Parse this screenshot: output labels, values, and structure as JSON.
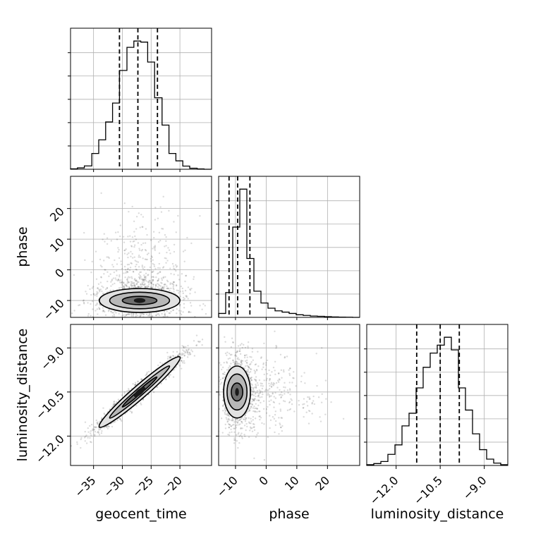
{
  "chart_data": {
    "type": "corner",
    "parameters": [
      "geocent_time",
      "phase",
      "luminosity_distance"
    ],
    "labels": {
      "geocent_time": "geocent_time",
      "phase": "phase",
      "luminosity_distance": "luminosity_distance"
    },
    "ranges": {
      "geocent_time": [
        -39.0,
        -14.5
      ],
      "phase": [
        -15.5,
        30.5
      ],
      "luminosity_distance": [
        -13.0,
        -8.2
      ]
    },
    "ticks": {
      "geocent_time": [
        -35,
        -30,
        -25,
        -20
      ],
      "phase": [
        -10,
        0,
        10,
        20
      ],
      "luminosity_distance": [
        -12.0,
        -10.5,
        -9.0
      ]
    },
    "tick_labels": {
      "geocent_time": [
        "−35",
        "−30",
        "−25",
        "−20"
      ],
      "phase": [
        "−10",
        "0",
        "10",
        "20"
      ],
      "luminosity_distance": [
        "−12.0",
        "−10.5",
        "−9.0"
      ]
    },
    "quantiles": {
      "geocent_time": [
        -30.5,
        -27.3,
        -23.9
      ],
      "phase": [
        -12.1,
        -9.3,
        -5.3
      ],
      "luminosity_distance": [
        -11.3,
        -10.5,
        -9.85
      ]
    },
    "histograms": {
      "geocent_time": {
        "edges": [
          -39.0,
          -37.8,
          -36.6,
          -35.3,
          -34.1,
          -32.9,
          -31.7,
          -30.5,
          -29.2,
          -28.0,
          -26.8,
          -25.6,
          -24.4,
          -23.1,
          -21.9,
          -20.7,
          -19.5,
          -18.3,
          -17.0,
          -15.8,
          -14.6
        ],
        "counts": [
          0.4,
          1.3,
          3.2,
          15,
          28,
          45,
          63,
          94,
          116,
          122,
          121,
          102,
          68,
          42,
          15,
          8,
          3,
          1,
          0.3,
          0
        ]
      },
      "phase": {
        "edges": [
          -15.5,
          -13.2,
          -10.9,
          -8.6,
          -6.3,
          -4.0,
          -1.7,
          0.6,
          2.9,
          5.2,
          7.5,
          9.8,
          12.1,
          14.4,
          16.7,
          19.0,
          21.3,
          23.6,
          25.9,
          28.2,
          30.5
        ],
        "counts": [
          3,
          19,
          69,
          98,
          45,
          20,
          11,
          7,
          5,
          4,
          3,
          2,
          1.5,
          1,
          0.8,
          0.5,
          0.3,
          0.2,
          0.1,
          0
        ]
      },
      "luminosity_distance": {
        "edges": [
          -13.0,
          -12.76,
          -12.52,
          -12.28,
          -12.04,
          -11.8,
          -11.56,
          -11.32,
          -11.08,
          -10.84,
          -10.6,
          -10.36,
          -10.12,
          -9.88,
          -9.64,
          -9.4,
          -9.16,
          -8.92,
          -8.68,
          -8.44,
          -8.2
        ],
        "counts": [
          0.5,
          1.2,
          2.5,
          7,
          13,
          25,
          33,
          49,
          62,
          71,
          76,
          81,
          73,
          49,
          35,
          20,
          10,
          4,
          1.5,
          0.5
        ]
      }
    },
    "pairs": [
      {
        "x": "geocent_time",
        "y": "phase",
        "center": [
          -27.0,
          -10.0
        ],
        "spread": [
          4.0,
          4.0
        ],
        "correlation": 0.0,
        "contour_levels": [
          "outer",
          "middle",
          "inner"
        ]
      },
      {
        "x": "geocent_time",
        "y": "luminosity_distance",
        "center": [
          -27.0,
          -10.5
        ],
        "spread": [
          4.0,
          0.68
        ],
        "correlation": 0.97,
        "contour_levels": [
          "outer",
          "middle",
          "inner"
        ]
      },
      {
        "x": "phase",
        "y": "luminosity_distance",
        "center": [
          -9.5,
          -10.5
        ],
        "spread": [
          2.5,
          0.68
        ],
        "correlation": 0.0,
        "contour_levels": [
          "outer",
          "middle",
          "inner"
        ]
      }
    ],
    "grid": true,
    "colors": {
      "lines": "#000000",
      "points": "#000000",
      "grid": "#b0b0b0"
    }
  }
}
